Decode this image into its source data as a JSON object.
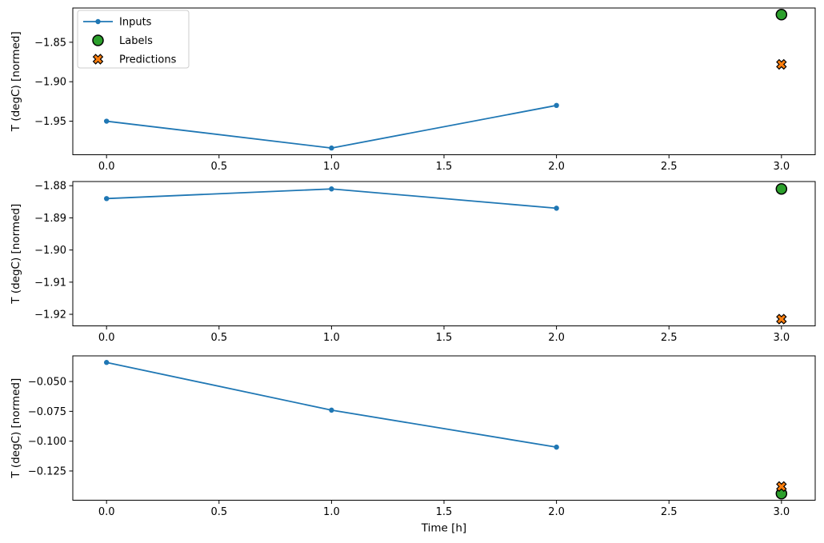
{
  "figure": {
    "background": "#ffffff",
    "xlabel": "Time [h]",
    "ylabel": "T (degC) [normed]"
  },
  "style": {
    "inputs_color": "#1f77b4",
    "labels_color": "#2ca02c",
    "predictions_color": "#ff7f0e",
    "marker_edge_color": "#000000",
    "spine_color": "#000000",
    "legend_border_color": "#cccccc",
    "legend_background": "#ffffff"
  },
  "legend": {
    "position": "upper left",
    "items": [
      {
        "label": "Inputs",
        "marker": "line-dot",
        "color": "#1f77b4"
      },
      {
        "label": "Labels",
        "marker": "circle",
        "color": "#2ca02c"
      },
      {
        "label": "Predictions",
        "marker": "X",
        "color": "#ff7f0e"
      }
    ]
  },
  "chart_data": [
    {
      "type": "line",
      "title": "",
      "xlabel": "",
      "ylabel": "T (degC) [normed]",
      "xlim": [
        -0.15,
        3.15
      ],
      "ylim": [
        -1.9925,
        -1.8066
      ],
      "x_ticks": [
        0.0,
        0.5,
        1.0,
        1.5,
        2.0,
        2.5,
        3.0
      ],
      "x_tick_labels": [
        "0.0",
        "0.5",
        "1.0",
        "1.5",
        "2.0",
        "2.5",
        "3.0"
      ],
      "y_ticks": [
        -1.85,
        -1.9,
        -1.95
      ],
      "y_tick_labels": [
        "−1.85",
        "−1.90",
        "−1.95"
      ],
      "grid": false,
      "legend_visible": true,
      "series": [
        {
          "name": "Inputs",
          "kind": "line",
          "marker": "dot",
          "x": [
            0,
            1,
            2
          ],
          "y": [
            -1.95,
            -1.984,
            -1.93
          ]
        },
        {
          "name": "Labels",
          "kind": "scatter",
          "marker": "circle",
          "x": [
            3
          ],
          "y": [
            -1.815
          ]
        },
        {
          "name": "Predictions",
          "kind": "scatter",
          "marker": "X",
          "x": [
            3
          ],
          "y": [
            -1.878
          ]
        }
      ]
    },
    {
      "type": "line",
      "title": "",
      "xlabel": "",
      "ylabel": "T (degC) [normed]",
      "xlim": [
        -0.15,
        3.15
      ],
      "ylim": [
        -1.9236,
        -1.8787
      ],
      "x_ticks": [
        0.0,
        0.5,
        1.0,
        1.5,
        2.0,
        2.5,
        3.0
      ],
      "x_tick_labels": [
        "0.0",
        "0.5",
        "1.0",
        "1.5",
        "2.0",
        "2.5",
        "3.0"
      ],
      "y_ticks": [
        -1.88,
        -1.89,
        -1.9,
        -1.91,
        -1.92
      ],
      "y_tick_labels": [
        "−1.88",
        "−1.89",
        "−1.90",
        "−1.91",
        "−1.92"
      ],
      "grid": false,
      "legend_visible": false,
      "series": [
        {
          "name": "Inputs",
          "kind": "line",
          "marker": "dot",
          "x": [
            0,
            1,
            2
          ],
          "y": [
            -1.884,
            -1.881,
            -1.887
          ]
        },
        {
          "name": "Labels",
          "kind": "scatter",
          "marker": "circle",
          "x": [
            3
          ],
          "y": [
            -1.881
          ]
        },
        {
          "name": "Predictions",
          "kind": "scatter",
          "marker": "X",
          "x": [
            3
          ],
          "y": [
            -1.9215
          ]
        }
      ]
    },
    {
      "type": "line",
      "title": "",
      "xlabel": "Time [h]",
      "ylabel": "T (degC) [normed]",
      "xlim": [
        -0.15,
        3.15
      ],
      "ylim": [
        -0.1495,
        -0.0285
      ],
      "x_ticks": [
        0.0,
        0.5,
        1.0,
        1.5,
        2.0,
        2.5,
        3.0
      ],
      "x_tick_labels": [
        "0.0",
        "0.5",
        "1.0",
        "1.5",
        "2.0",
        "2.5",
        "3.0"
      ],
      "y_ticks": [
        -0.05,
        -0.075,
        -0.1,
        -0.125
      ],
      "y_tick_labels": [
        "−0.050",
        "−0.075",
        "−0.100",
        "−0.125"
      ],
      "grid": false,
      "legend_visible": false,
      "series": [
        {
          "name": "Inputs",
          "kind": "line",
          "marker": "dot",
          "x": [
            0,
            1,
            2
          ],
          "y": [
            -0.034,
            -0.074,
            -0.105
          ]
        },
        {
          "name": "Labels",
          "kind": "scatter",
          "marker": "circle",
          "x": [
            3
          ],
          "y": [
            -0.144
          ]
        },
        {
          "name": "Predictions",
          "kind": "scatter",
          "marker": "X",
          "x": [
            3
          ],
          "y": [
            -0.138
          ]
        }
      ]
    }
  ]
}
